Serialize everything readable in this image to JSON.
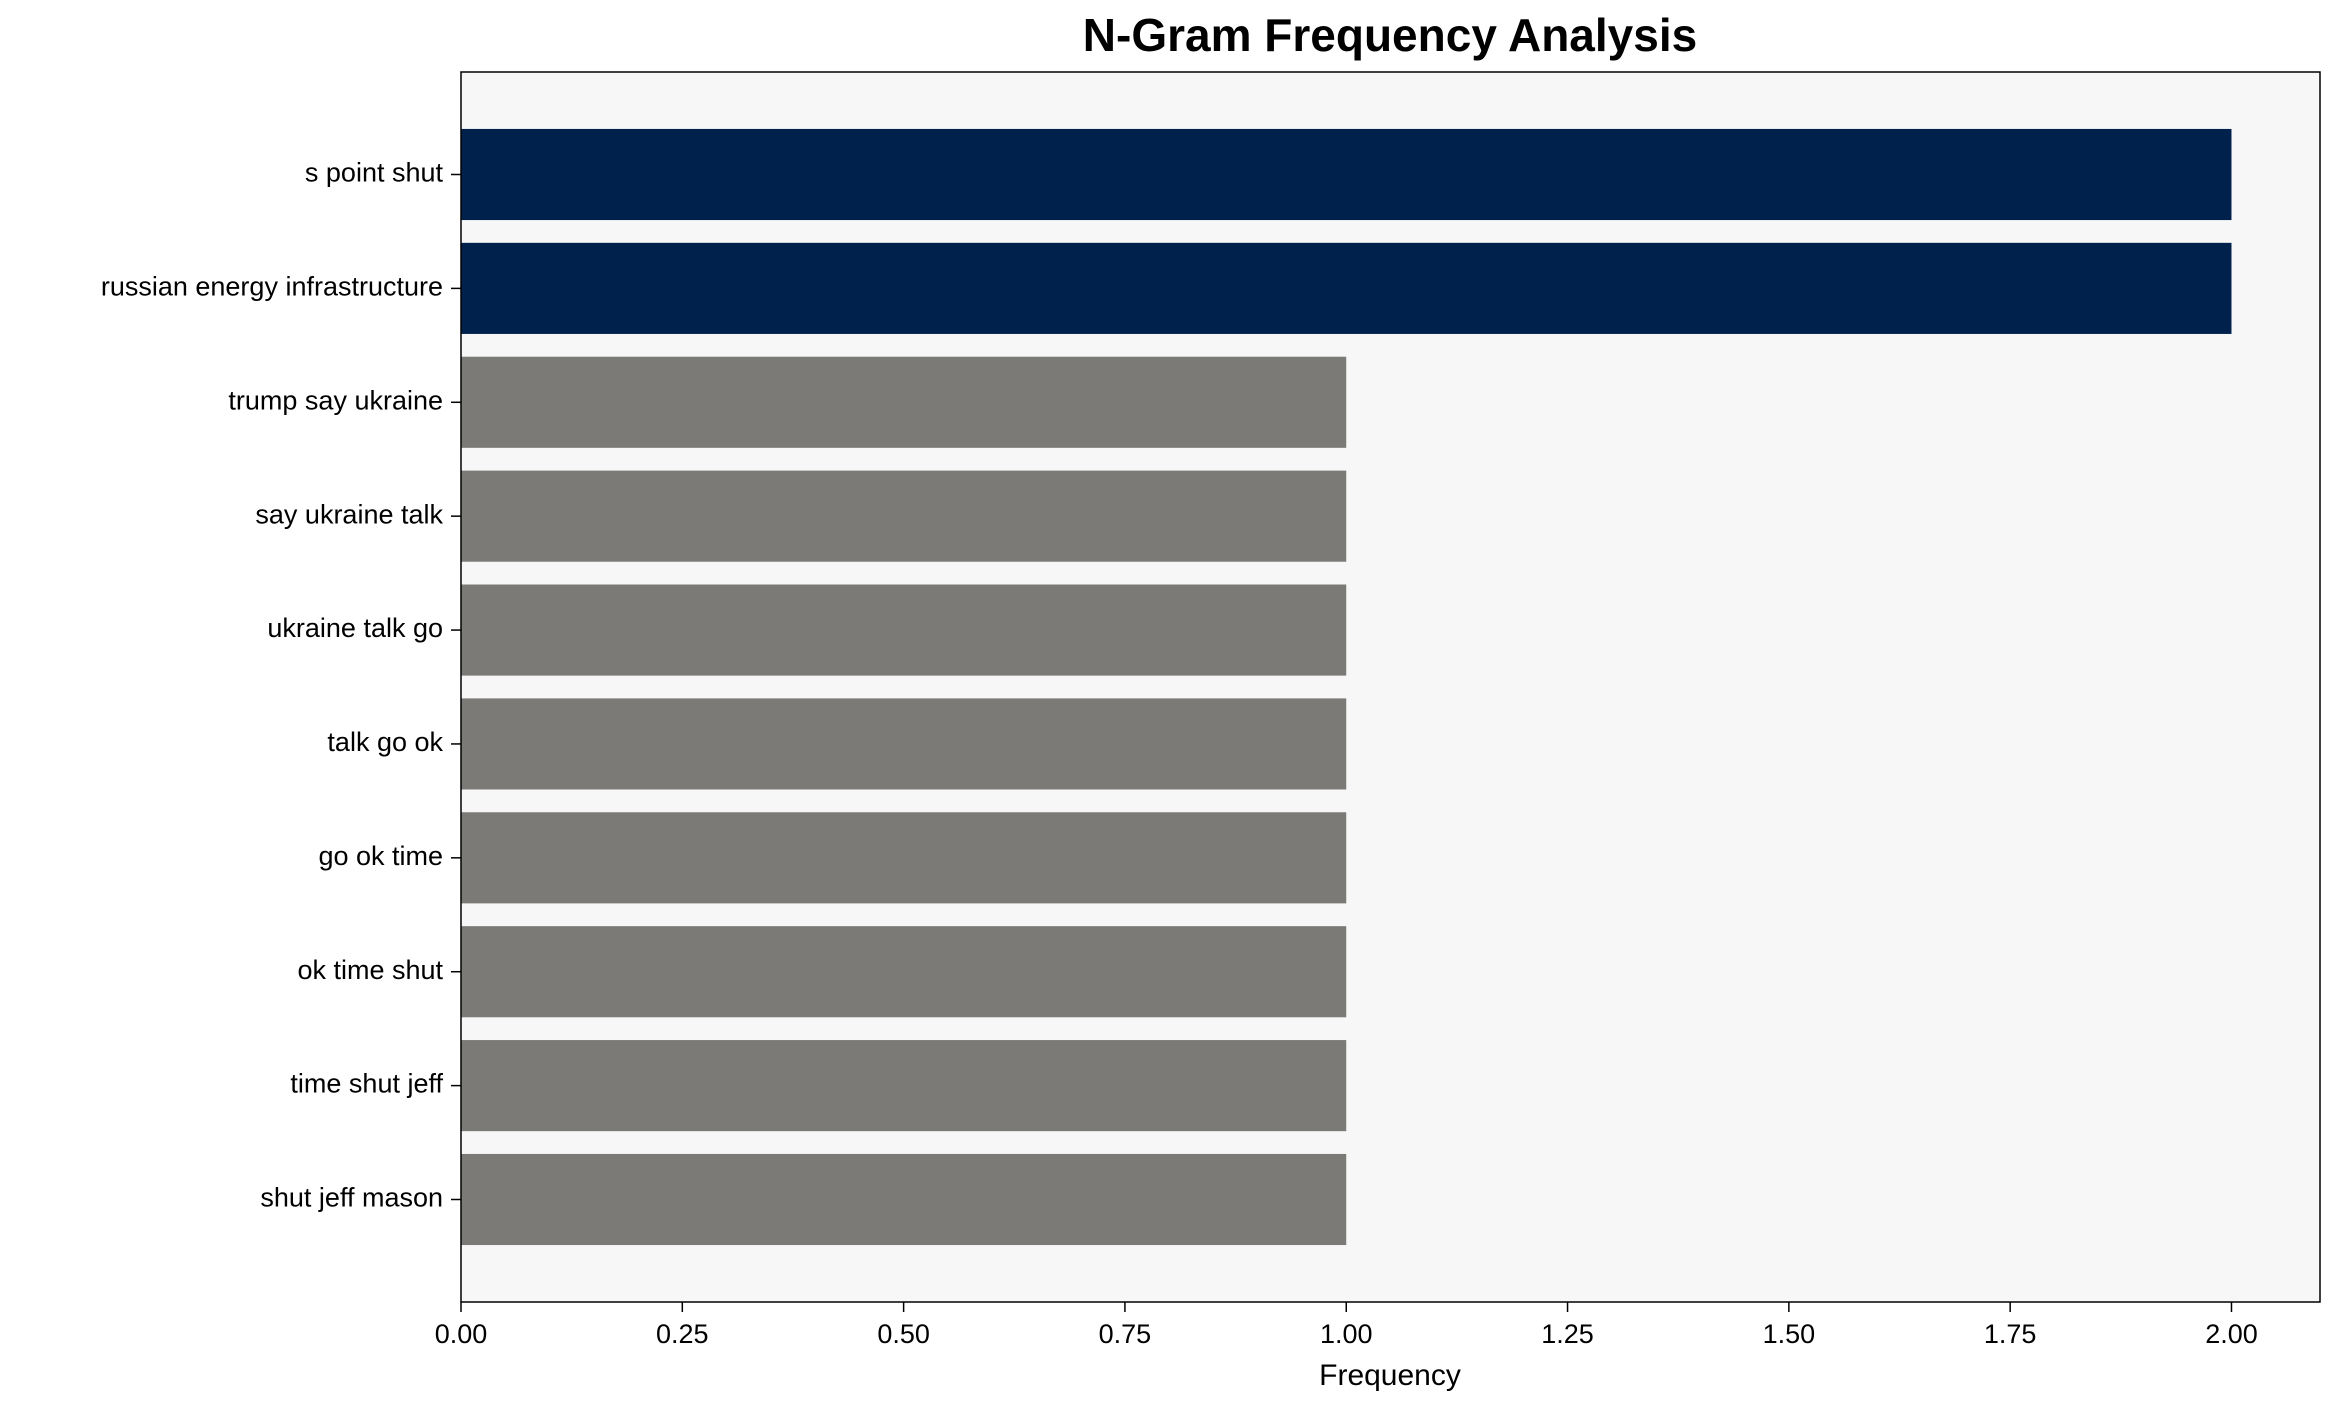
{
  "chart_data": {
    "type": "barh",
    "title": "N-Gram Frequency Analysis",
    "xlabel": "Frequency",
    "categories": [
      "s point shut",
      "russian energy infrastructure",
      "trump say ukraine",
      "say ukraine talk",
      "ukraine talk go",
      "talk go ok",
      "go ok time",
      "ok time shut",
      "time shut jeff",
      "shut jeff mason"
    ],
    "values": [
      2,
      2,
      1,
      1,
      1,
      1,
      1,
      1,
      1,
      1
    ],
    "colors": [
      "#00214c",
      "#00214c",
      "#7b7a76",
      "#7b7a76",
      "#7b7a76",
      "#7b7a76",
      "#7b7a76",
      "#7b7a76",
      "#7b7a76",
      "#7b7a76"
    ],
    "xlim": [
      0,
      2.1
    ],
    "xticks": [
      {
        "value": 0,
        "label": "0.00"
      },
      {
        "value": 0.25,
        "label": "0.25"
      },
      {
        "value": 0.5,
        "label": "0.50"
      },
      {
        "value": 0.75,
        "label": "0.75"
      },
      {
        "value": 1,
        "label": "1.00"
      },
      {
        "value": 1.25,
        "label": "1.25"
      },
      {
        "value": 1.5,
        "label": "1.50"
      },
      {
        "value": 1.75,
        "label": "1.75"
      },
      {
        "value": 2,
        "label": "2.00"
      }
    ],
    "grid": false
  }
}
